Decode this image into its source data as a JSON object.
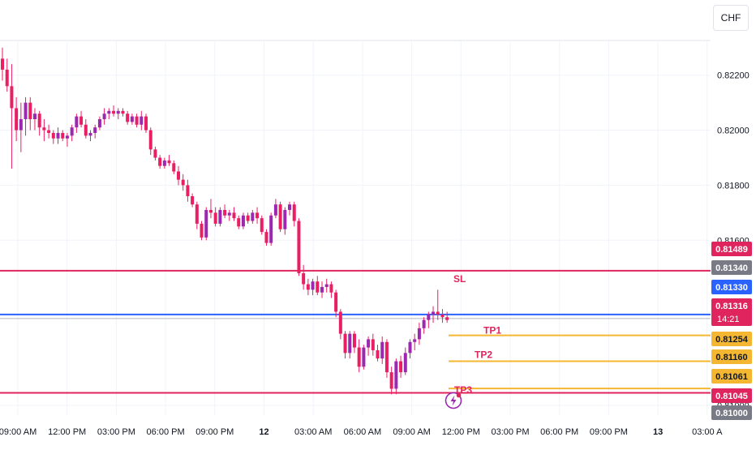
{
  "currency_label": "CHF",
  "price_axis": {
    "ticks": [
      "0.82200",
      "0.82000",
      "0.81800",
      "0.81600",
      "0.81000"
    ],
    "tick_values": [
      0.822,
      0.82,
      0.818,
      0.816,
      0.81
    ]
  },
  "time_axis": {
    "labels": [
      "09:00 AM",
      "12:00 PM",
      "03:00 PM",
      "06:00 PM",
      "09:00 PM",
      "12",
      "03:00 AM",
      "06:00 AM",
      "09:00 AM",
      "12:00 PM",
      "03:00 PM",
      "06:00 PM",
      "09:00 PM",
      "13",
      "03:00 A"
    ]
  },
  "price_tags": [
    {
      "value": 0.81489,
      "label": "0.81489",
      "color": "#e0245e"
    },
    {
      "value": 0.8134,
      "label": "0.81340",
      "color": "#787b86"
    },
    {
      "value": 0.8133,
      "label": "0.81330",
      "color": "#2962ff"
    },
    {
      "value": 0.81316,
      "label": "0.81316",
      "sub": "14:21",
      "color": "#e0245e"
    },
    {
      "value": 0.81254,
      "label": "0.81254",
      "color": "#f5b731"
    },
    {
      "value": 0.8116,
      "label": "0.81160",
      "color": "#f5b731"
    },
    {
      "value": 0.81061,
      "label": "0.81061",
      "color": "#f5b731"
    },
    {
      "value": 0.81045,
      "label": "0.81045",
      "color": "#e0245e"
    },
    {
      "value": 0.81,
      "label": "0.81000",
      "color": "#787b86"
    }
  ],
  "levels": {
    "sl": {
      "label": "SL",
      "value": 0.81489,
      "color": "#e0245e"
    },
    "entry": {
      "value": 0.8133,
      "color": "#2962ff"
    },
    "tp1": {
      "label": "TP1",
      "value": 0.81254,
      "color": "#f5b731"
    },
    "tp2": {
      "label": "TP2",
      "value": 0.8116,
      "color": "#f5b731"
    },
    "tp3": {
      "label": "TP3",
      "value": 0.81061,
      "color": "#f5b731"
    },
    "low": {
      "value": 0.81045,
      "color": "#e0245e"
    }
  },
  "colors": {
    "up": "#9c27b0",
    "down": "#e91e63",
    "wick": "#e91e63",
    "grid": "#f0f3fa",
    "text": "#131722"
  },
  "chart_data": {
    "type": "candlestick",
    "instrument_currency": "CHF",
    "ylim": [
      0.8097,
      0.8232
    ],
    "ohlc": [
      [
        0.8226,
        0.823,
        0.8218,
        0.8222
      ],
      [
        0.8222,
        0.8226,
        0.8214,
        0.8216
      ],
      [
        0.8216,
        0.8224,
        0.8186,
        0.8208
      ],
      [
        0.8208,
        0.8212,
        0.8196,
        0.82
      ],
      [
        0.82,
        0.821,
        0.8192,
        0.8204
      ],
      [
        0.8204,
        0.8212,
        0.8198,
        0.821
      ],
      [
        0.821,
        0.8212,
        0.82,
        0.8204
      ],
      [
        0.8204,
        0.8208,
        0.82,
        0.8206
      ],
      [
        0.8206,
        0.8207,
        0.8198,
        0.8201
      ],
      [
        0.8201,
        0.8204,
        0.8196,
        0.82
      ],
      [
        0.82,
        0.8202,
        0.8197,
        0.8199
      ],
      [
        0.8199,
        0.82,
        0.8195,
        0.8197
      ],
      [
        0.8197,
        0.8201,
        0.8195,
        0.8199
      ],
      [
        0.8199,
        0.82,
        0.8196,
        0.8197
      ],
      [
        0.8197,
        0.8199,
        0.8194,
        0.8198
      ],
      [
        0.8198,
        0.8202,
        0.8196,
        0.8201
      ],
      [
        0.8201,
        0.8206,
        0.8199,
        0.8205
      ],
      [
        0.8205,
        0.8207,
        0.8201,
        0.8202
      ],
      [
        0.8202,
        0.8204,
        0.8197,
        0.8198
      ],
      [
        0.8198,
        0.82,
        0.8196,
        0.8199
      ],
      [
        0.8199,
        0.8202,
        0.8197,
        0.8201
      ],
      [
        0.8201,
        0.8205,
        0.82,
        0.8204
      ],
      [
        0.8204,
        0.8208,
        0.8202,
        0.8206
      ],
      [
        0.8206,
        0.8208,
        0.8204,
        0.8207
      ],
      [
        0.8207,
        0.8209,
        0.8205,
        0.8206
      ],
      [
        0.8206,
        0.8208,
        0.8204,
        0.8207
      ],
      [
        0.8207,
        0.8208,
        0.8205,
        0.8206
      ],
      [
        0.8206,
        0.8207,
        0.8202,
        0.8203
      ],
      [
        0.8203,
        0.8206,
        0.8202,
        0.8205
      ],
      [
        0.8205,
        0.8206,
        0.8201,
        0.8202
      ],
      [
        0.8202,
        0.8207,
        0.82,
        0.8205
      ],
      [
        0.8205,
        0.8206,
        0.8199,
        0.82
      ],
      [
        0.82,
        0.8201,
        0.8191,
        0.8193
      ],
      [
        0.8193,
        0.8194,
        0.8189,
        0.819
      ],
      [
        0.819,
        0.8191,
        0.8186,
        0.8187
      ],
      [
        0.8187,
        0.819,
        0.8186,
        0.8189
      ],
      [
        0.8189,
        0.8191,
        0.8187,
        0.8188
      ],
      [
        0.8188,
        0.8189,
        0.8184,
        0.8185
      ],
      [
        0.8185,
        0.8187,
        0.818,
        0.8182
      ],
      [
        0.8182,
        0.8184,
        0.8178,
        0.818
      ],
      [
        0.818,
        0.8182,
        0.8174,
        0.8176
      ],
      [
        0.8176,
        0.8177,
        0.8172,
        0.8173
      ],
      [
        0.8173,
        0.8174,
        0.8164,
        0.8166
      ],
      [
        0.8166,
        0.8167,
        0.816,
        0.8161
      ],
      [
        0.8161,
        0.8172,
        0.816,
        0.8171
      ],
      [
        0.8171,
        0.8175,
        0.8168,
        0.817
      ],
      [
        0.817,
        0.8172,
        0.8165,
        0.8166
      ],
      [
        0.8166,
        0.8172,
        0.8165,
        0.8171
      ],
      [
        0.8171,
        0.8173,
        0.8168,
        0.8169
      ],
      [
        0.8169,
        0.8171,
        0.8167,
        0.817
      ],
      [
        0.817,
        0.8172,
        0.8167,
        0.8168
      ],
      [
        0.8168,
        0.8169,
        0.8164,
        0.8165
      ],
      [
        0.8165,
        0.817,
        0.8164,
        0.8169
      ],
      [
        0.8169,
        0.817,
        0.8166,
        0.8167
      ],
      [
        0.8167,
        0.8171,
        0.8166,
        0.817
      ],
      [
        0.817,
        0.8172,
        0.8166,
        0.8168
      ],
      [
        0.8168,
        0.8169,
        0.8162,
        0.8163
      ],
      [
        0.8163,
        0.8164,
        0.8158,
        0.8159
      ],
      [
        0.8159,
        0.817,
        0.8158,
        0.8169
      ],
      [
        0.8169,
        0.8175,
        0.8168,
        0.8173
      ],
      [
        0.8173,
        0.8174,
        0.8163,
        0.8164
      ],
      [
        0.8164,
        0.8172,
        0.8162,
        0.8171
      ],
      [
        0.8171,
        0.8174,
        0.8169,
        0.8173
      ],
      [
        0.8173,
        0.8174,
        0.8165,
        0.8167
      ],
      [
        0.8167,
        0.8168,
        0.8147,
        0.8148
      ],
      [
        0.8148,
        0.8151,
        0.8142,
        0.8144
      ],
      [
        0.8144,
        0.8146,
        0.814,
        0.8142
      ],
      [
        0.8142,
        0.8146,
        0.814,
        0.8145
      ],
      [
        0.8145,
        0.8147,
        0.814,
        0.8141
      ],
      [
        0.8141,
        0.8145,
        0.8139,
        0.8143
      ],
      [
        0.8143,
        0.8146,
        0.8141,
        0.8144
      ],
      [
        0.8144,
        0.8145,
        0.8139,
        0.8141
      ],
      [
        0.8141,
        0.8142,
        0.8132,
        0.8134
      ],
      [
        0.8134,
        0.8135,
        0.8124,
        0.8126
      ],
      [
        0.8126,
        0.8127,
        0.8117,
        0.8119
      ],
      [
        0.8119,
        0.8127,
        0.8117,
        0.8126
      ],
      [
        0.8126,
        0.8127,
        0.8119,
        0.8121
      ],
      [
        0.8121,
        0.8124,
        0.8112,
        0.8114
      ],
      [
        0.8114,
        0.8122,
        0.8113,
        0.8121
      ],
      [
        0.8121,
        0.8125,
        0.8118,
        0.8124
      ],
      [
        0.8124,
        0.8126,
        0.8118,
        0.812
      ],
      [
        0.812,
        0.8122,
        0.8116,
        0.8117
      ],
      [
        0.8117,
        0.8125,
        0.8115,
        0.8123
      ],
      [
        0.8123,
        0.8124,
        0.811,
        0.8112
      ],
      [
        0.8112,
        0.8114,
        0.8104,
        0.8106
      ],
      [
        0.8106,
        0.8117,
        0.8104,
        0.8116
      ],
      [
        0.8116,
        0.8118,
        0.811,
        0.8112
      ],
      [
        0.8112,
        0.8121,
        0.8111,
        0.8119
      ],
      [
        0.8119,
        0.8124,
        0.8117,
        0.8123
      ],
      [
        0.8123,
        0.8126,
        0.812,
        0.8124
      ],
      [
        0.8124,
        0.813,
        0.8122,
        0.8128
      ],
      [
        0.8128,
        0.8132,
        0.8126,
        0.8131
      ],
      [
        0.8131,
        0.8134,
        0.8128,
        0.8133
      ],
      [
        0.8133,
        0.8136,
        0.813,
        0.8134
      ],
      [
        0.8134,
        0.8142,
        0.8131,
        0.8133
      ],
      [
        0.8133,
        0.8135,
        0.813,
        0.8132
      ],
      [
        0.8132,
        0.8134,
        0.813,
        0.8131
      ]
    ]
  }
}
